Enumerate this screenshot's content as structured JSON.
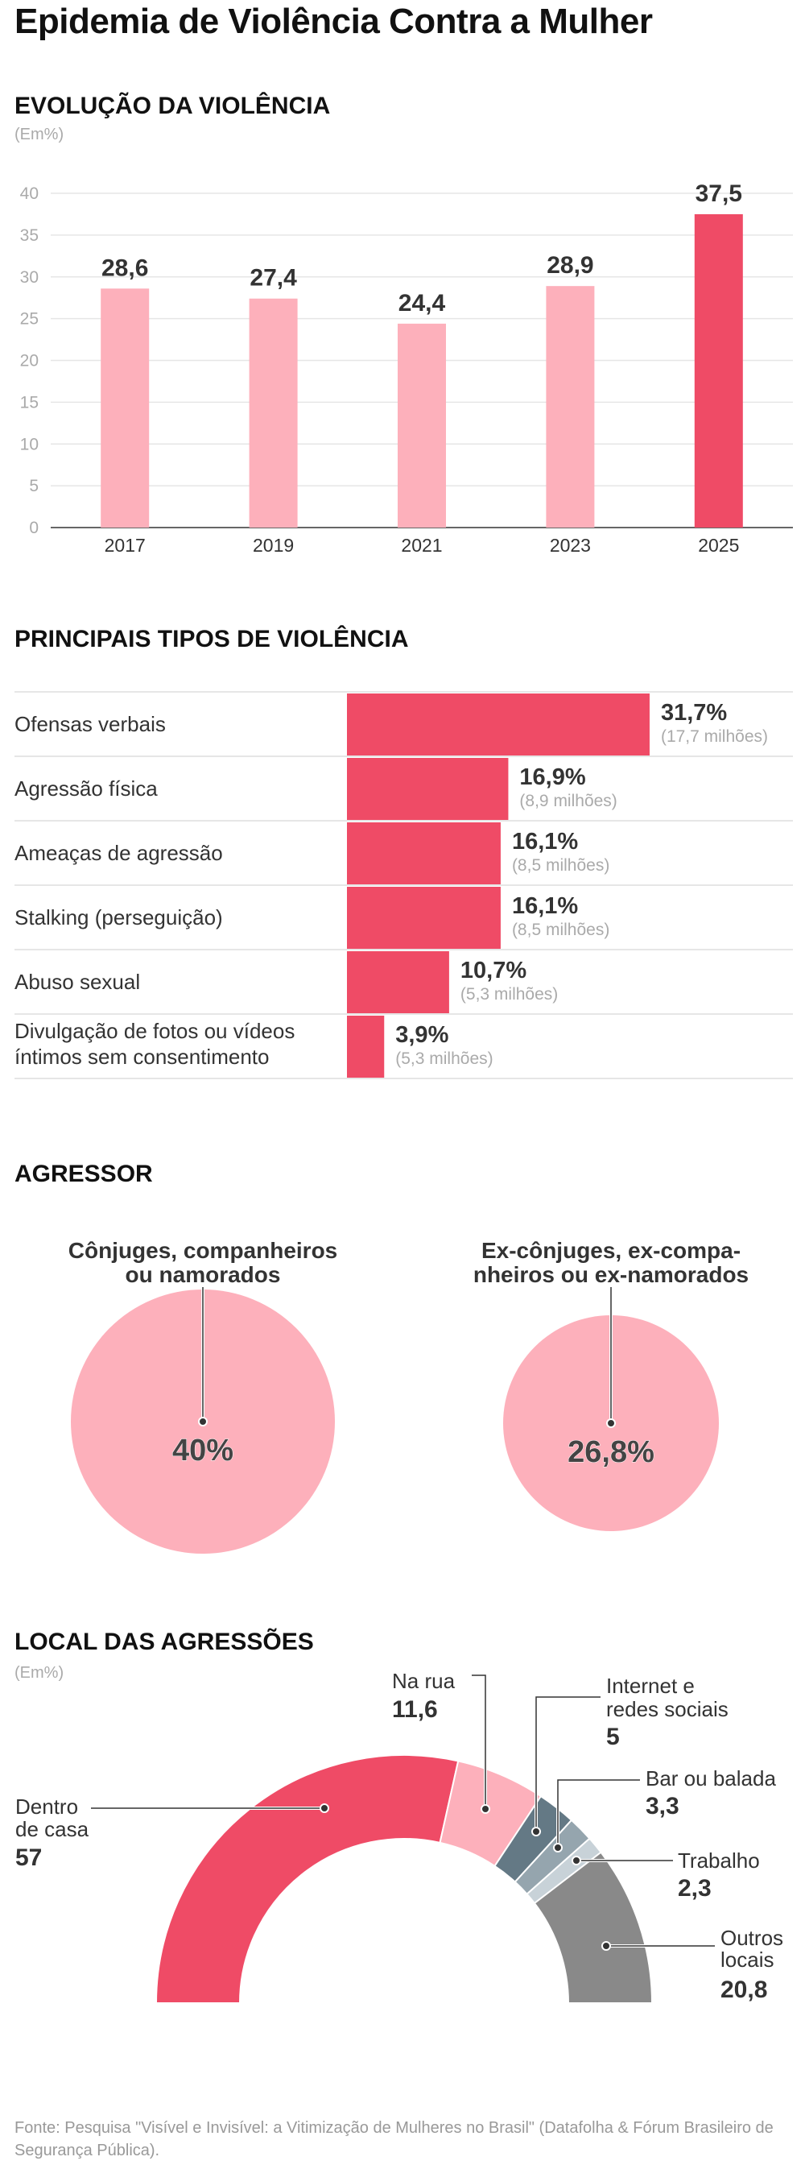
{
  "title": "Epidemia de Violência Contra a Mulher",
  "colors": {
    "highlight": "#ef4b66",
    "pink": "#fdb0bb",
    "grid": "#e6e6e6",
    "axis": "#666666"
  },
  "evolution": {
    "heading": "EVOLUÇÃO DA VIOLÊNCIA",
    "unit": "(Em%)",
    "chart_data": {
      "type": "bar",
      "categories": [
        "2017",
        "2019",
        "2021",
        "2023",
        "2025"
      ],
      "values": [
        28.6,
        27.4,
        24.4,
        28.9,
        37.5
      ],
      "value_labels": [
        "28,6",
        "27,4",
        "24,4",
        "28,9",
        "37,5"
      ],
      "highlight": "2025",
      "yticks": [
        0,
        5,
        10,
        15,
        20,
        25,
        30,
        35,
        40
      ],
      "ylim": [
        0,
        40
      ],
      "grid": true
    }
  },
  "types": {
    "heading": "PRINCIPAIS TIPOS DE VIOLÊNCIA",
    "chart_data": {
      "type": "bar",
      "orientation": "horizontal",
      "rows": [
        {
          "label": [
            "Ofensas verbais"
          ],
          "value": 31.7,
          "value_label": "31,7%",
          "sub": "(17,7 milhões)"
        },
        {
          "label": [
            "Agressão física"
          ],
          "value": 16.9,
          "value_label": "16,9%",
          "sub": "(8,9 milhões)"
        },
        {
          "label": [
            "Ameaças de agressão"
          ],
          "value": 16.1,
          "value_label": "16,1%",
          "sub": "(8,5 milhões)"
        },
        {
          "label": [
            "Stalking (perseguição)"
          ],
          "value": 16.1,
          "value_label": "16,1%",
          "sub": "(8,5 milhões)"
        },
        {
          "label": [
            "Abuso sexual"
          ],
          "value": 10.7,
          "value_label": "10,7%",
          "sub": "(5,3 milhões)"
        },
        {
          "label": [
            "Divulgação de fotos ou vídeos",
            "íntimos sem consentimento"
          ],
          "value": 3.9,
          "value_label": "3,9%",
          "sub": "(5,3 milhões)"
        }
      ]
    }
  },
  "aggressor": {
    "heading": "AGRESSOR",
    "chart_data": [
      {
        "type": "pie",
        "title": [
          "Cônjuges, companheiros",
          "ou namorados"
        ],
        "value": 40,
        "value_label": "40%"
      },
      {
        "type": "pie",
        "title": [
          "Ex-cônjuges, ex-compa-",
          "nheiros ou ex-namorados"
        ],
        "value": 26.8,
        "value_label": "26,8%"
      }
    ]
  },
  "location": {
    "heading": "LOCAL DAS AGRESSÕES",
    "unit": "(Em%)",
    "chart_data": {
      "type": "pie",
      "style": "half-donut",
      "slices": [
        {
          "label": [
            "Dentro",
            "de casa"
          ],
          "value": 57,
          "value_label": "57",
          "color": "#ef4b66"
        },
        {
          "label": [
            "Na rua"
          ],
          "value": 11.6,
          "value_label": "11,6",
          "color": "#fdb0bb"
        },
        {
          "label": [
            "Internet e",
            "redes sociais"
          ],
          "value": 5,
          "value_label": "5",
          "color": "#647985"
        },
        {
          "label": [
            "Bar ou balada"
          ],
          "value": 3.3,
          "value_label": "3,3",
          "color": "#95a5ae"
        },
        {
          "label": [
            "Trabalho"
          ],
          "value": 2.3,
          "value_label": "2,3",
          "color": "#c8d2d8"
        },
        {
          "label": [
            "Outros",
            "locais"
          ],
          "value": 20.8,
          "value_label": "20,8",
          "color": "#898989"
        }
      ]
    }
  },
  "footer": "Fonte: Pesquisa \"Visível e Invisível: a Vitimização de Mulheres no Brasil\" (Datafolha & Fórum Brasileiro de Segurança Pública)."
}
